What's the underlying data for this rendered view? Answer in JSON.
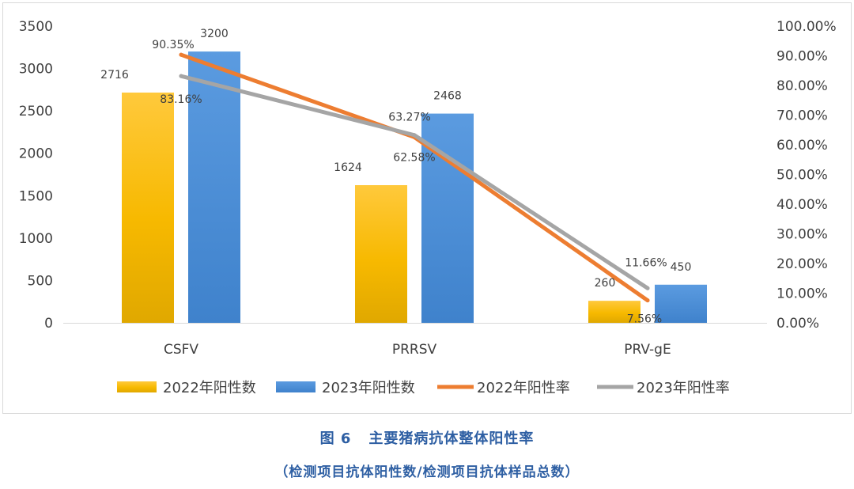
{
  "chart_data": {
    "type": "bar",
    "categories": [
      "CSFV",
      "PRRSV",
      "PRV-gE"
    ],
    "series": [
      {
        "name": "2022年阳性数",
        "kind": "bar",
        "axis": "left",
        "values": [
          2716,
          1624,
          260
        ],
        "color": "#f5b800"
      },
      {
        "name": "2023年阳性数",
        "kind": "bar",
        "axis": "left",
        "values": [
          3200,
          2468,
          450
        ],
        "color": "#4a8fd6"
      },
      {
        "name": "2022年阳性率",
        "kind": "line",
        "axis": "right",
        "values": [
          90.35,
          62.58,
          7.56
        ],
        "labels": [
          "90.35%",
          "62.58%",
          "7.56%"
        ],
        "color": "#ed7d31"
      },
      {
        "name": "2023年阳性率",
        "kind": "line",
        "axis": "right",
        "values": [
          83.16,
          63.27,
          11.66
        ],
        "labels": [
          "83.16%",
          "63.27%",
          "11.66%"
        ],
        "color": "#a5a5a5"
      }
    ],
    "bar_labels": [
      [
        "2716",
        "1624",
        "260"
      ],
      [
        "3200",
        "2468",
        "450"
      ]
    ],
    "y_left": {
      "ticks": [
        "0",
        "500",
        "1000",
        "1500",
        "2000",
        "2500",
        "3000",
        "3500"
      ],
      "min": 0,
      "max": 3500
    },
    "y_right": {
      "ticks": [
        "0.00%",
        "10.00%",
        "20.00%",
        "30.00%",
        "40.00%",
        "50.00%",
        "60.00%",
        "70.00%",
        "80.00%",
        "90.00%",
        "100.00%"
      ],
      "min": 0,
      "max": 100
    },
    "legend_position": "bottom"
  },
  "caption": {
    "number": "图 6",
    "title": "主要猪病抗体整体阳性率",
    "subtitle": "（检测项目抗体阳性数/检测项目抗体样品总数）"
  }
}
